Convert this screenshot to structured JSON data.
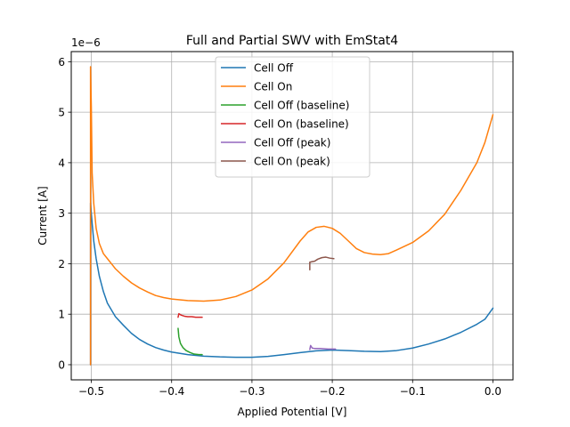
{
  "chart_data": {
    "type": "line",
    "title": "Full and Partial SWV with EmStat4",
    "xlabel": "Applied Potential [V]",
    "ylabel": "Current [A]",
    "y_scale_label": "1e−6",
    "xlim": [
      -0.525,
      0.025
    ],
    "ylim": [
      -0.3,
      6.2
    ],
    "y_scale": 1e-06,
    "grid": true,
    "legend_position": "upper-center",
    "x_ticks": [
      -0.5,
      -0.4,
      -0.3,
      -0.2,
      -0.1,
      0.0
    ],
    "x_tick_labels": [
      "−0.5",
      "−0.4",
      "−0.3",
      "−0.2",
      "−0.1",
      "0.0"
    ],
    "y_ticks": [
      0,
      1,
      2,
      3,
      4,
      5,
      6
    ],
    "y_tick_labels": [
      "0",
      "1",
      "2",
      "3",
      "4",
      "5",
      "6"
    ],
    "series": [
      {
        "name": "Cell Off",
        "color": "#1f77b4",
        "points": [
          [
            -0.501,
            0.0
          ],
          [
            -0.501,
            3.2
          ],
          [
            -0.499,
            2.8
          ],
          [
            -0.497,
            2.45
          ],
          [
            -0.494,
            2.1
          ],
          [
            -0.49,
            1.75
          ],
          [
            -0.485,
            1.45
          ],
          [
            -0.48,
            1.22
          ],
          [
            -0.47,
            0.95
          ],
          [
            -0.46,
            0.78
          ],
          [
            -0.45,
            0.62
          ],
          [
            -0.44,
            0.5
          ],
          [
            -0.43,
            0.41
          ],
          [
            -0.42,
            0.34
          ],
          [
            -0.41,
            0.29
          ],
          [
            -0.4,
            0.25
          ],
          [
            -0.38,
            0.2
          ],
          [
            -0.36,
            0.17
          ],
          [
            -0.34,
            0.155
          ],
          [
            -0.32,
            0.148
          ],
          [
            -0.3,
            0.148
          ],
          [
            -0.28,
            0.165
          ],
          [
            -0.26,
            0.2
          ],
          [
            -0.24,
            0.24
          ],
          [
            -0.22,
            0.275
          ],
          [
            -0.2,
            0.29
          ],
          [
            -0.18,
            0.28
          ],
          [
            -0.16,
            0.265
          ],
          [
            -0.14,
            0.26
          ],
          [
            -0.12,
            0.28
          ],
          [
            -0.1,
            0.33
          ],
          [
            -0.08,
            0.41
          ],
          [
            -0.06,
            0.51
          ],
          [
            -0.04,
            0.64
          ],
          [
            -0.02,
            0.8
          ],
          [
            -0.01,
            0.9
          ],
          [
            0.0,
            1.12
          ]
        ]
      },
      {
        "name": "Cell On",
        "color": "#ff7f0e",
        "points": [
          [
            -0.501,
            0.0
          ],
          [
            -0.501,
            5.9
          ],
          [
            -0.5,
            5.1
          ],
          [
            -0.499,
            3.8
          ],
          [
            -0.497,
            3.2
          ],
          [
            -0.494,
            2.7
          ],
          [
            -0.49,
            2.4
          ],
          [
            -0.485,
            2.2
          ],
          [
            -0.48,
            2.1
          ],
          [
            -0.47,
            1.9
          ],
          [
            -0.46,
            1.75
          ],
          [
            -0.45,
            1.62
          ],
          [
            -0.44,
            1.52
          ],
          [
            -0.43,
            1.44
          ],
          [
            -0.42,
            1.37
          ],
          [
            -0.41,
            1.33
          ],
          [
            -0.4,
            1.3
          ],
          [
            -0.38,
            1.27
          ],
          [
            -0.36,
            1.26
          ],
          [
            -0.34,
            1.28
          ],
          [
            -0.32,
            1.35
          ],
          [
            -0.3,
            1.48
          ],
          [
            -0.28,
            1.7
          ],
          [
            -0.26,
            2.02
          ],
          [
            -0.24,
            2.45
          ],
          [
            -0.23,
            2.63
          ],
          [
            -0.22,
            2.72
          ],
          [
            -0.21,
            2.74
          ],
          [
            -0.2,
            2.7
          ],
          [
            -0.19,
            2.6
          ],
          [
            -0.18,
            2.45
          ],
          [
            -0.17,
            2.3
          ],
          [
            -0.16,
            2.22
          ],
          [
            -0.15,
            2.19
          ],
          [
            -0.14,
            2.18
          ],
          [
            -0.13,
            2.2
          ],
          [
            -0.12,
            2.27
          ],
          [
            -0.1,
            2.42
          ],
          [
            -0.08,
            2.65
          ],
          [
            -0.06,
            2.98
          ],
          [
            -0.04,
            3.45
          ],
          [
            -0.02,
            4.0
          ],
          [
            -0.01,
            4.4
          ],
          [
            0.0,
            4.95
          ]
        ]
      },
      {
        "name": "Cell Off (baseline)",
        "color": "#2ca02c",
        "points": [
          [
            -0.392,
            0.72
          ],
          [
            -0.391,
            0.55
          ],
          [
            -0.389,
            0.42
          ],
          [
            -0.386,
            0.34
          ],
          [
            -0.382,
            0.28
          ],
          [
            -0.377,
            0.24
          ],
          [
            -0.372,
            0.21
          ],
          [
            -0.366,
            0.2
          ],
          [
            -0.362,
            0.2
          ]
        ]
      },
      {
        "name": "Cell On (baseline)",
        "color": "#d62728",
        "points": [
          [
            -0.392,
            0.94
          ],
          [
            -0.391,
            1.01
          ],
          [
            -0.388,
            0.98
          ],
          [
            -0.384,
            0.96
          ],
          [
            -0.38,
            0.95
          ],
          [
            -0.375,
            0.95
          ],
          [
            -0.37,
            0.94
          ],
          [
            -0.362,
            0.94
          ]
        ]
      },
      {
        "name": "Cell Off (peak)",
        "color": "#9467bd",
        "points": [
          [
            -0.228,
            0.3
          ],
          [
            -0.227,
            0.38
          ],
          [
            -0.225,
            0.33
          ],
          [
            -0.222,
            0.32
          ],
          [
            -0.215,
            0.32
          ],
          [
            -0.205,
            0.31
          ],
          [
            -0.196,
            0.31
          ]
        ]
      },
      {
        "name": "Cell On (peak)",
        "color": "#8c564b",
        "points": [
          [
            -0.228,
            1.88
          ],
          [
            -0.228,
            2.03
          ],
          [
            -0.225,
            2.04
          ],
          [
            -0.222,
            2.05
          ],
          [
            -0.218,
            2.09
          ],
          [
            -0.213,
            2.12
          ],
          [
            -0.208,
            2.13
          ],
          [
            -0.203,
            2.11
          ],
          [
            -0.198,
            2.1
          ]
        ]
      }
    ]
  }
}
